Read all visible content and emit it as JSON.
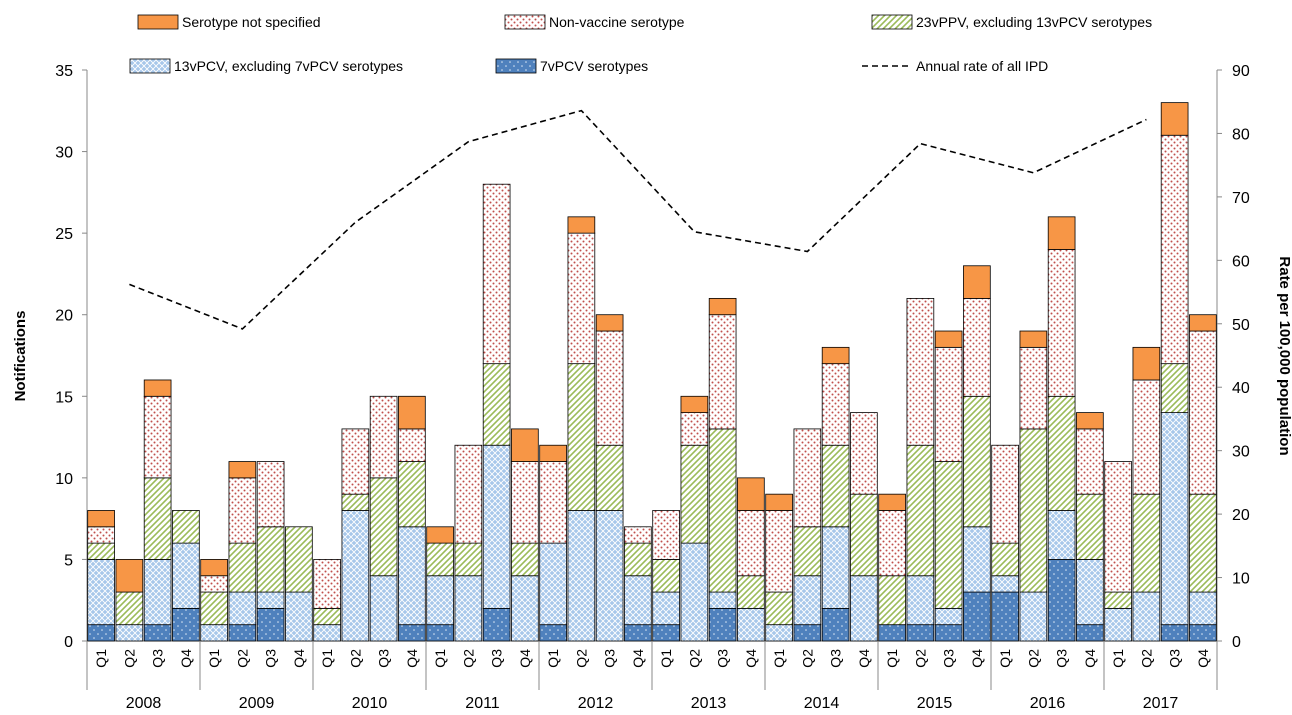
{
  "chart_data": {
    "type": "bar",
    "stacked": true,
    "ylabel": "Notifications",
    "y2label": "Rate per 100,000 population",
    "ylim": [
      0,
      35
    ],
    "y2lim": [
      0,
      90
    ],
    "yticks": [
      "0",
      "5",
      "10",
      "15",
      "20",
      "25",
      "30",
      "35"
    ],
    "y2ticks": [
      "0",
      "10",
      "20",
      "30",
      "40",
      "50",
      "60",
      "70",
      "80",
      "90"
    ],
    "quarters": [
      "Q1",
      "Q2",
      "Q3",
      "Q4"
    ],
    "years": [
      "2008",
      "2009",
      "2010",
      "2011",
      "2012",
      "2013",
      "2014",
      "2015",
      "2016",
      "2017"
    ],
    "series": [
      {
        "name": "7vPCV serotypes",
        "color": "#4f81bd",
        "values": [
          1,
          0,
          1,
          2,
          0,
          1,
          2,
          0,
          0,
          0,
          0,
          1,
          1,
          0,
          2,
          0,
          1,
          0,
          0,
          1,
          1,
          0,
          2,
          0,
          0,
          1,
          2,
          0,
          1,
          1,
          1,
          3,
          3,
          0,
          5,
          1,
          0,
          0,
          1,
          1
        ]
      },
      {
        "name": "13vPCV, excluding 7vPCV serotypes",
        "color": "#9dc3e6",
        "values": [
          4,
          1,
          4,
          4,
          1,
          2,
          1,
          3,
          1,
          8,
          4,
          6,
          3,
          4,
          10,
          4,
          5,
          8,
          8,
          3,
          2,
          6,
          1,
          2,
          1,
          3,
          5,
          4,
          0,
          3,
          1,
          4,
          1,
          3,
          3,
          4,
          2,
          3,
          13,
          2
        ]
      },
      {
        "name": "23vPPV, excluding 13vPCV serotypes",
        "color": "#c4d79b",
        "values": [
          1,
          2,
          5,
          2,
          2,
          3,
          4,
          4,
          1,
          1,
          6,
          4,
          2,
          2,
          5,
          2,
          0,
          9,
          4,
          2,
          2,
          6,
          10,
          2,
          2,
          3,
          5,
          5,
          3,
          8,
          9,
          8,
          2,
          10,
          7,
          4,
          1,
          6,
          3,
          6
        ]
      },
      {
        "name": "Non-vaccine serotype",
        "color": "#e6b8b7",
        "values": [
          1,
          0,
          5,
          0,
          1,
          4,
          4,
          0,
          3,
          4,
          5,
          2,
          0,
          6,
          11,
          5,
          5,
          8,
          7,
          1,
          3,
          2,
          7,
          4,
          5,
          6,
          5,
          5,
          4,
          9,
          7,
          6,
          6,
          5,
          9,
          4,
          8,
          7,
          14,
          10
        ]
      },
      {
        "name": "Serotype not specified",
        "color": "#f79646",
        "values": [
          1,
          2,
          1,
          0,
          1,
          1,
          0,
          0,
          0,
          0,
          0,
          2,
          1,
          0,
          0,
          2,
          1,
          1,
          1,
          0,
          0,
          1,
          1,
          2,
          1,
          0,
          1,
          0,
          1,
          0,
          1,
          2,
          0,
          1,
          2,
          1,
          0,
          2,
          2,
          1
        ]
      }
    ],
    "line": {
      "name": "Annual rate of all IPD",
      "x": [
        "2008 Q2",
        "2009 Q2",
        "2010 Q2",
        "2011 Q2",
        "2012 Q2",
        "2013 Q2",
        "2014 Q2",
        "2015 Q2",
        "2016 Q2",
        "2017 Q2"
      ],
      "values": [
        56.2,
        49.2,
        66.0,
        78.7,
        83.6,
        64.5,
        61.4,
        78.4,
        73.8,
        82.2
      ]
    },
    "legend_placement": "top",
    "grid": false
  }
}
